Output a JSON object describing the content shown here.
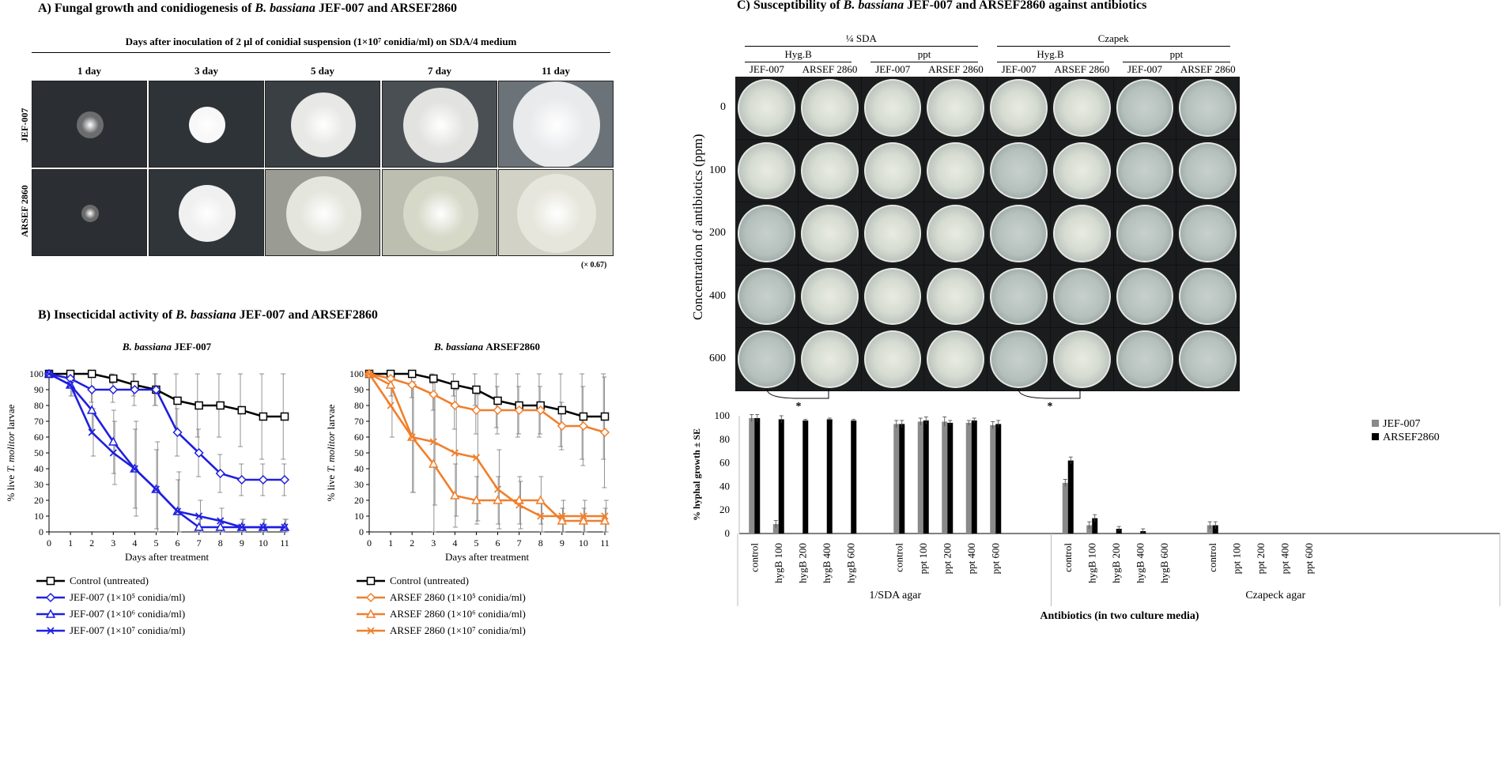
{
  "panelA": {
    "title_prefix": "A) Fungal growth and conidiogenesis of ",
    "title_species": "B. bassiana",
    "title_suffix": " JEF-007 and ARSEF2860",
    "subtitle": "Days after inoculation of 2 μl of conidial suspension (1×10⁷ conidia/ml) on SDA/4 medium",
    "days": [
      "1 day",
      "3 day",
      "5 day",
      "7 day",
      "11 day"
    ],
    "rows": [
      "JEF-007",
      "ARSEF 2860"
    ],
    "magnification": "(× 0.67)",
    "colony_sizes_jef": [
      0.34,
      0.46,
      0.82,
      0.95,
      1.1
    ],
    "colony_sizes_arsef": [
      0.22,
      0.72,
      0.95,
      0.95,
      1.0
    ]
  },
  "panelB": {
    "title_prefix": "B) Insecticidal activity of ",
    "title_species": "B. bassiana",
    "title_suffix": " JEF-007 and ARSEF2860",
    "xlabel": "Days after treatment",
    "ylabel_prefix": "% live ",
    "ylabel_species": "T. molitor",
    "ylabel_suffix": " larvae"
  },
  "panelC": {
    "title_prefix": "C) Susceptibility of ",
    "title_species": "B. bassiana",
    "title_suffix": " JEF-007 and ARSEF2860 against antibiotics",
    "media": [
      "¼ SDA",
      "Czapek"
    ],
    "antibiotics": [
      "Hyg.B",
      "ppt",
      "Hyg.B",
      "ppt"
    ],
    "strains": [
      "JEF-007",
      "ARSEF 2860",
      "JEF-007",
      "ARSEF 2860",
      "JEF-007",
      "ARSEF 2860",
      "JEF-007",
      "ARSEF 2860"
    ],
    "concentrations": [
      "0",
      "100",
      "200",
      "400",
      "600"
    ],
    "ylabel": "Concentration of antibiotics (ppm)",
    "asterisk": "*",
    "growth_matrix": [
      [
        1,
        1,
        1,
        1,
        1,
        1,
        0,
        0
      ],
      [
        1,
        1,
        1,
        1,
        0,
        1,
        0,
        0
      ],
      [
        0,
        1,
        1,
        1,
        0,
        1,
        0,
        0
      ],
      [
        0,
        1,
        1,
        1,
        0,
        0,
        0,
        0
      ],
      [
        0,
        1,
        1,
        1,
        0,
        1,
        0,
        0
      ]
    ]
  },
  "chart_data": [
    {
      "type": "line",
      "title": "B. bassiana JEF-007",
      "xlabel": "Days after treatment",
      "ylabel": "% live T. molitor larvae",
      "x": [
        0,
        1,
        2,
        3,
        4,
        5,
        6,
        7,
        8,
        9,
        10,
        11
      ],
      "ylim": [
        0,
        100
      ],
      "series": [
        {
          "name": "Control (untreated)",
          "marker": "square",
          "color": "#000000",
          "values": [
            100,
            100,
            100,
            97,
            93,
            90,
            83,
            80,
            80,
            77,
            73,
            73
          ],
          "err": [
            0,
            0,
            0,
            3,
            7,
            10,
            17,
            20,
            20,
            23,
            27,
            27
          ]
        },
        {
          "name": "JEF-007 (1×10⁵ conidia/ml)",
          "marker": "diamond",
          "color": "#1f1fe0",
          "values": [
            100,
            97,
            90,
            90,
            90,
            90,
            63,
            50,
            37,
            33,
            33,
            33
          ],
          "err": [
            0,
            3,
            8,
            8,
            10,
            10,
            15,
            15,
            12,
            10,
            10,
            10
          ]
        },
        {
          "name": "JEF-007 (1×10⁶ conidia/ml)",
          "marker": "triangle",
          "color": "#1f1fe0",
          "values": [
            100,
            93,
            77,
            57,
            40,
            27,
            13,
            3,
            3,
            3,
            3,
            3
          ],
          "err": [
            0,
            7,
            15,
            20,
            25,
            25,
            20,
            5,
            5,
            5,
            5,
            5
          ]
        },
        {
          "name": "JEF-007 (1×10⁷ conidia/ml)",
          "marker": "x",
          "color": "#1f1fe0",
          "values": [
            100,
            93,
            63,
            50,
            40,
            27,
            13,
            10,
            7,
            3,
            3,
            3
          ],
          "err": [
            0,
            7,
            15,
            20,
            30,
            30,
            25,
            10,
            8,
            5,
            5,
            5
          ]
        }
      ]
    },
    {
      "type": "line",
      "title": "B. bassiana ARSEF2860",
      "xlabel": "Days after treatment",
      "ylabel": "% live T. molitor larvae",
      "x": [
        0,
        1,
        2,
        3,
        4,
        5,
        6,
        7,
        8,
        9,
        10,
        11
      ],
      "ylim": [
        0,
        100
      ],
      "series": [
        {
          "name": "Control (untreated)",
          "marker": "square",
          "color": "#000000",
          "values": [
            100,
            100,
            100,
            97,
            93,
            90,
            83,
            80,
            80,
            77,
            73,
            73
          ],
          "err": [
            0,
            0,
            0,
            3,
            7,
            10,
            17,
            20,
            20,
            23,
            27,
            27
          ]
        },
        {
          "name": "ARSEF 2860 (1×10⁵ conidia/ml)",
          "marker": "diamond",
          "color": "#f07f2c",
          "values": [
            100,
            97,
            93,
            87,
            80,
            77,
            77,
            77,
            77,
            67,
            67,
            63
          ],
          "err": [
            0,
            3,
            8,
            10,
            15,
            15,
            15,
            15,
            15,
            15,
            25,
            35
          ]
        },
        {
          "name": "ARSEF 2860 (1×10⁶ conidia/ml)",
          "marker": "triangle",
          "color": "#f07f2c",
          "values": [
            100,
            93,
            60,
            43,
            23,
            20,
            20,
            20,
            20,
            7,
            7,
            7
          ],
          "err": [
            0,
            7,
            35,
            45,
            20,
            15,
            15,
            15,
            15,
            8,
            8,
            8
          ]
        },
        {
          "name": "ARSEF 2860 (1×10⁷ conidia/ml)",
          "marker": "x",
          "color": "#f07f2c",
          "values": [
            100,
            80,
            60,
            57,
            50,
            47,
            27,
            17,
            10,
            10,
            10,
            10
          ],
          "err": [
            0,
            20,
            35,
            40,
            40,
            40,
            25,
            15,
            10,
            10,
            10,
            10
          ]
        }
      ]
    },
    {
      "type": "bar",
      "xlabel": "Antibiotics (in two culture media)",
      "ylabel": "% hyphal growth ± SE",
      "ylim": [
        0,
        100
      ],
      "group_labels": [
        "1/SDA agar",
        "Czapeck agar"
      ],
      "categories": [
        "control",
        "hygB 100",
        "hygB 200",
        "hygB 400",
        "hygB 600",
        "control",
        "ppt 100",
        "ppt 200",
        "ppt 400",
        "ppt 600",
        "control",
        "hygB 100",
        "hygB 200",
        "hygB 400",
        "hygB 600",
        "control",
        "ppt 100",
        "ppt 200",
        "ppt 400",
        "ppt 600"
      ],
      "series": [
        {
          "name": "JEF-007",
          "color": "#8a8a8a",
          "values": [
            98,
            8,
            0,
            0,
            0,
            93,
            95,
            95,
            94,
            92,
            43,
            7,
            0,
            0,
            0,
            7,
            0,
            0,
            0,
            0
          ],
          "err": [
            3,
            3,
            0,
            0,
            0,
            3,
            3,
            4,
            2,
            3,
            3,
            3,
            0,
            0,
            0,
            3,
            0,
            0,
            0,
            0
          ]
        },
        {
          "name": "ARSEF2860",
          "color": "#000000",
          "values": [
            98,
            97,
            96,
            97,
            96,
            93,
            96,
            94,
            96,
            93,
            62,
            13,
            4,
            2,
            0,
            7,
            0,
            0,
            0,
            0
          ],
          "err": [
            3,
            3,
            1,
            1,
            1,
            3,
            3,
            2,
            2,
            3,
            3,
            3,
            2,
            2,
            0,
            3,
            0,
            0,
            0,
            0
          ]
        }
      ]
    }
  ]
}
